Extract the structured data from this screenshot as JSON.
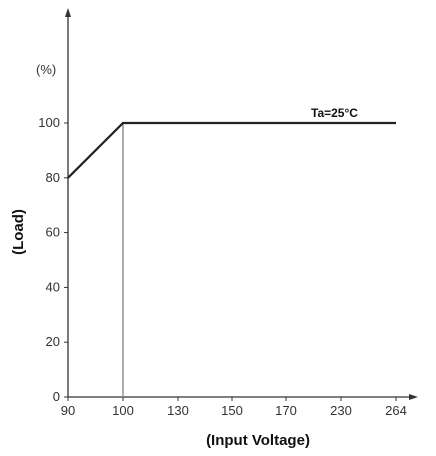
{
  "chart_data": {
    "type": "line",
    "x_categories": [
      "90",
      "100",
      "130",
      "150",
      "170",
      "230",
      "264"
    ],
    "series": [
      {
        "name": "",
        "x": [
          "90",
          "100",
          "264"
        ],
        "y": [
          80,
          100,
          100
        ]
      }
    ],
    "marker_x": "100",
    "y_ticks": [
      0,
      20,
      40,
      60,
      80,
      100
    ],
    "ylim": [
      0,
      100
    ],
    "y_unit": "(%)",
    "xlabel": "(Input Voltage)",
    "ylabel": "(Load)",
    "annotation": "Ta=25°C",
    "grid": false,
    "line_color": "#222222",
    "marker_color": "#9a9a9a",
    "axis_color": "#333333"
  }
}
